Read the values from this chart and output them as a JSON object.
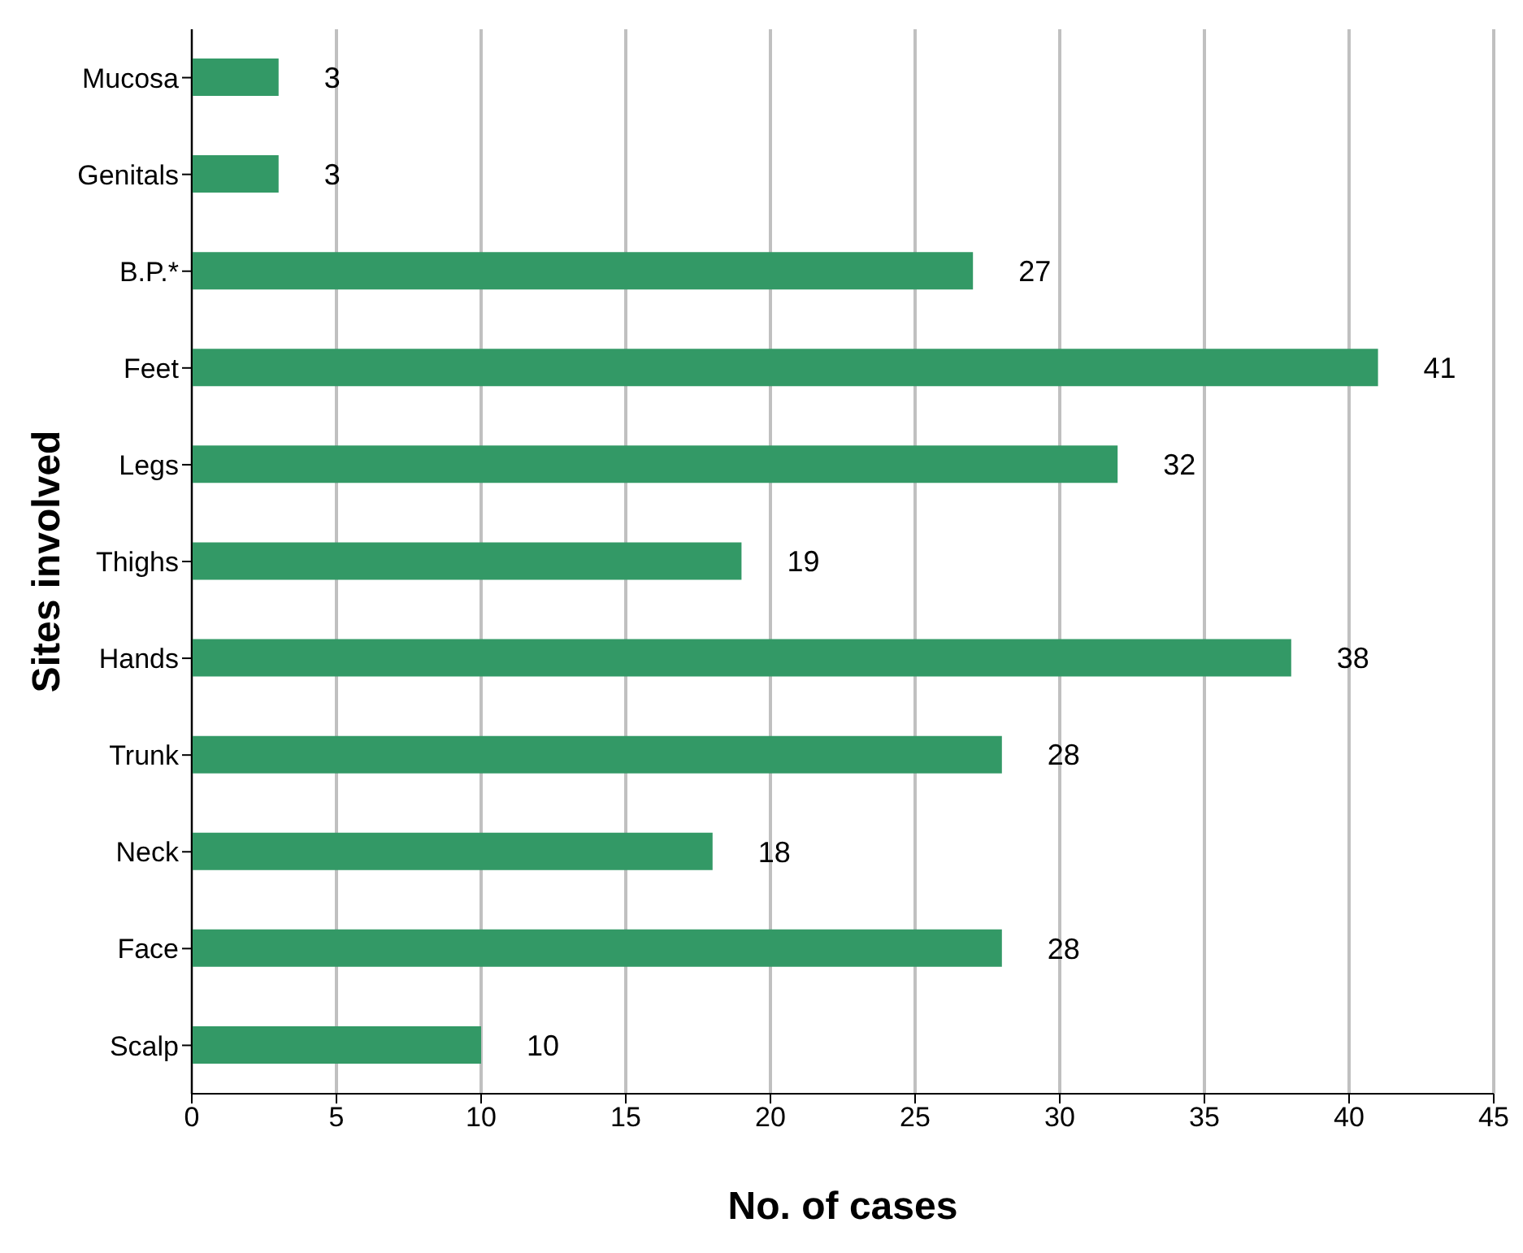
{
  "chart_data": {
    "type": "bar",
    "orientation": "horizontal",
    "xlabel": "No. of cases",
    "ylabel": "Sites involved",
    "categories": [
      "Mucosa",
      "Genitals",
      "B.P.*",
      "Feet",
      "Legs",
      "Thighs",
      "Hands",
      "Trunk",
      "Neck",
      "Face",
      "Scalp"
    ],
    "values": [
      3,
      3,
      27,
      41,
      32,
      19,
      38,
      28,
      18,
      28,
      10
    ],
    "color": "#339966",
    "xlim": [
      0,
      45
    ],
    "xticks": [
      0,
      5,
      10,
      15,
      20,
      25,
      30,
      35,
      40,
      45
    ],
    "grid": "x",
    "data_labels": true
  }
}
